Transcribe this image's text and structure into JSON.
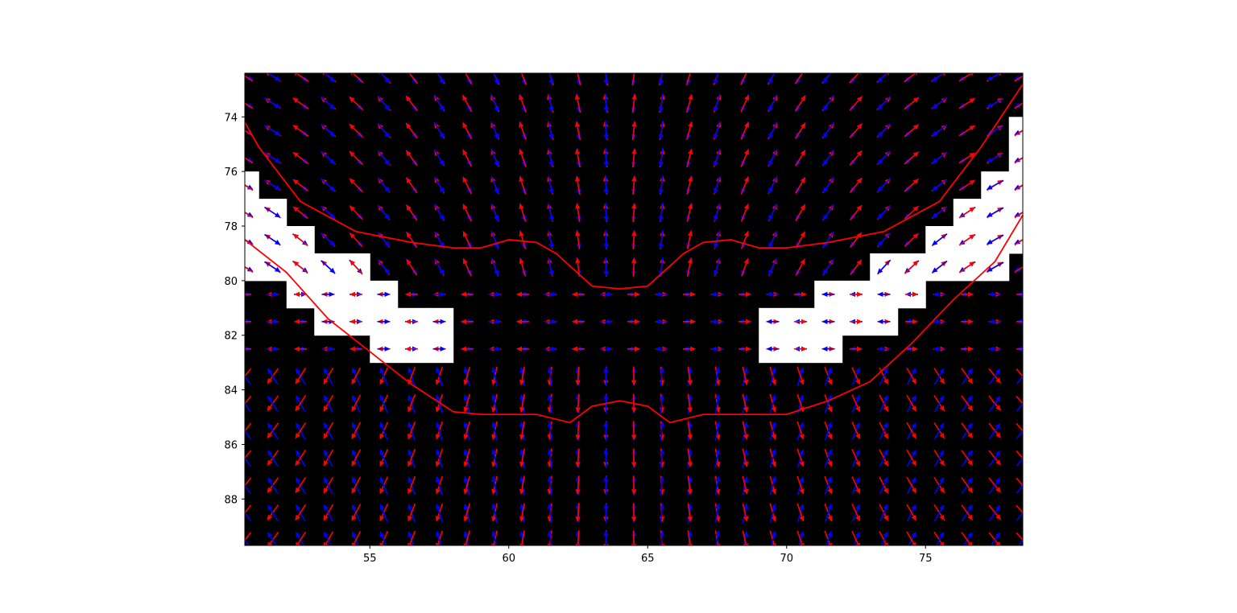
{
  "chart_data": {
    "type": "quiver",
    "title": "",
    "xlabel": "",
    "ylabel": "",
    "xlim": [
      50.5,
      78.5
    ],
    "ylim": [
      89.7,
      72.4
    ],
    "y_inverted": true,
    "grid": false,
    "legend": "none",
    "xticks": [
      55,
      60,
      65,
      70,
      75
    ],
    "yticks": [
      74,
      76,
      78,
      80,
      82,
      84,
      86,
      88
    ],
    "background_color": "#000000",
    "masked_color": "#ffffff",
    "series": [
      {
        "role": "quiver-field-a",
        "color": "#ff0000"
      },
      {
        "role": "quiver-field-b",
        "color": "#0000ff"
      },
      {
        "role": "boundary-upper",
        "color": "#ff0000"
      },
      {
        "role": "boundary-lower",
        "color": "#ff0000"
      }
    ],
    "quiver_grid": {
      "x_start": 50.5,
      "x_step": 1,
      "x_count": 29,
      "y_start": 72.5,
      "y_step": 1,
      "y_count": 18,
      "center_x": 64
    },
    "masked_cells": [
      [
        50.5,
        76.5
      ],
      [
        50.5,
        77.5
      ],
      [
        51.5,
        77.5
      ],
      [
        50.5,
        78.5
      ],
      [
        51.5,
        78.5
      ],
      [
        52.5,
        78.5
      ],
      [
        50.5,
        79.5
      ],
      [
        51.5,
        79.5
      ],
      [
        52.5,
        79.5
      ],
      [
        53.5,
        79.5
      ],
      [
        54.5,
        79.5
      ],
      [
        52.5,
        80.5
      ],
      [
        53.5,
        80.5
      ],
      [
        54.5,
        80.5
      ],
      [
        55.5,
        80.5
      ],
      [
        53.5,
        81.5
      ],
      [
        54.5,
        81.5
      ],
      [
        55.5,
        81.5
      ],
      [
        56.5,
        81.5
      ],
      [
        57.5,
        81.5
      ],
      [
        55.5,
        82.5
      ],
      [
        56.5,
        82.5
      ],
      [
        57.5,
        82.5
      ],
      [
        78.5,
        74.5
      ],
      [
        78.5,
        75.5
      ],
      [
        78.5,
        76.5
      ],
      [
        77.5,
        76.5
      ],
      [
        78.5,
        77.5
      ],
      [
        77.5,
        77.5
      ],
      [
        76.5,
        77.5
      ],
      [
        78.5,
        78.5
      ],
      [
        77.5,
        78.5
      ],
      [
        76.5,
        78.5
      ],
      [
        75.5,
        78.5
      ],
      [
        77.5,
        79.5
      ],
      [
        76.5,
        79.5
      ],
      [
        75.5,
        79.5
      ],
      [
        74.5,
        79.5
      ],
      [
        73.5,
        79.5
      ],
      [
        74.5,
        80.5
      ],
      [
        73.5,
        80.5
      ],
      [
        72.5,
        80.5
      ],
      [
        71.5,
        80.5
      ],
      [
        73.5,
        81.5
      ],
      [
        72.5,
        81.5
      ],
      [
        71.5,
        81.5
      ],
      [
        70.5,
        81.5
      ],
      [
        69.5,
        81.5
      ],
      [
        71.5,
        82.5
      ],
      [
        70.5,
        82.5
      ],
      [
        69.5,
        82.5
      ]
    ],
    "boundary_upper": {
      "x": [
        50.5,
        51.0,
        52.5,
        54.5,
        56.5,
        58.0,
        59.0,
        60.0,
        61.0,
        61.7,
        63.0,
        64.0,
        65.0,
        66.3,
        67.0,
        68.0,
        69.0,
        70.0,
        71.5,
        73.5,
        75.5,
        77.0,
        78.5
      ],
      "y": [
        74.2,
        75.1,
        77.1,
        78.2,
        78.6,
        78.8,
        78.8,
        78.5,
        78.6,
        79.0,
        80.2,
        80.3,
        80.2,
        79.0,
        78.6,
        78.5,
        78.8,
        78.8,
        78.6,
        78.2,
        77.1,
        75.1,
        72.8
      ]
    },
    "boundary_lower": {
      "x": [
        50.5,
        52.0,
        53.5,
        55.0,
        56.5,
        58.0,
        59.0,
        60.0,
        61.0,
        62.2,
        63.0,
        64.0,
        65.0,
        65.8,
        67.0,
        68.0,
        69.0,
        70.0,
        71.5,
        73.0,
        74.5,
        76.0,
        77.5,
        78.5
      ],
      "y": [
        78.5,
        79.7,
        81.4,
        82.6,
        83.8,
        84.8,
        84.9,
        84.9,
        84.9,
        85.2,
        84.6,
        84.4,
        84.6,
        85.2,
        84.9,
        84.9,
        84.9,
        84.9,
        84.4,
        83.7,
        82.3,
        80.7,
        79.3,
        77.6
      ]
    }
  }
}
